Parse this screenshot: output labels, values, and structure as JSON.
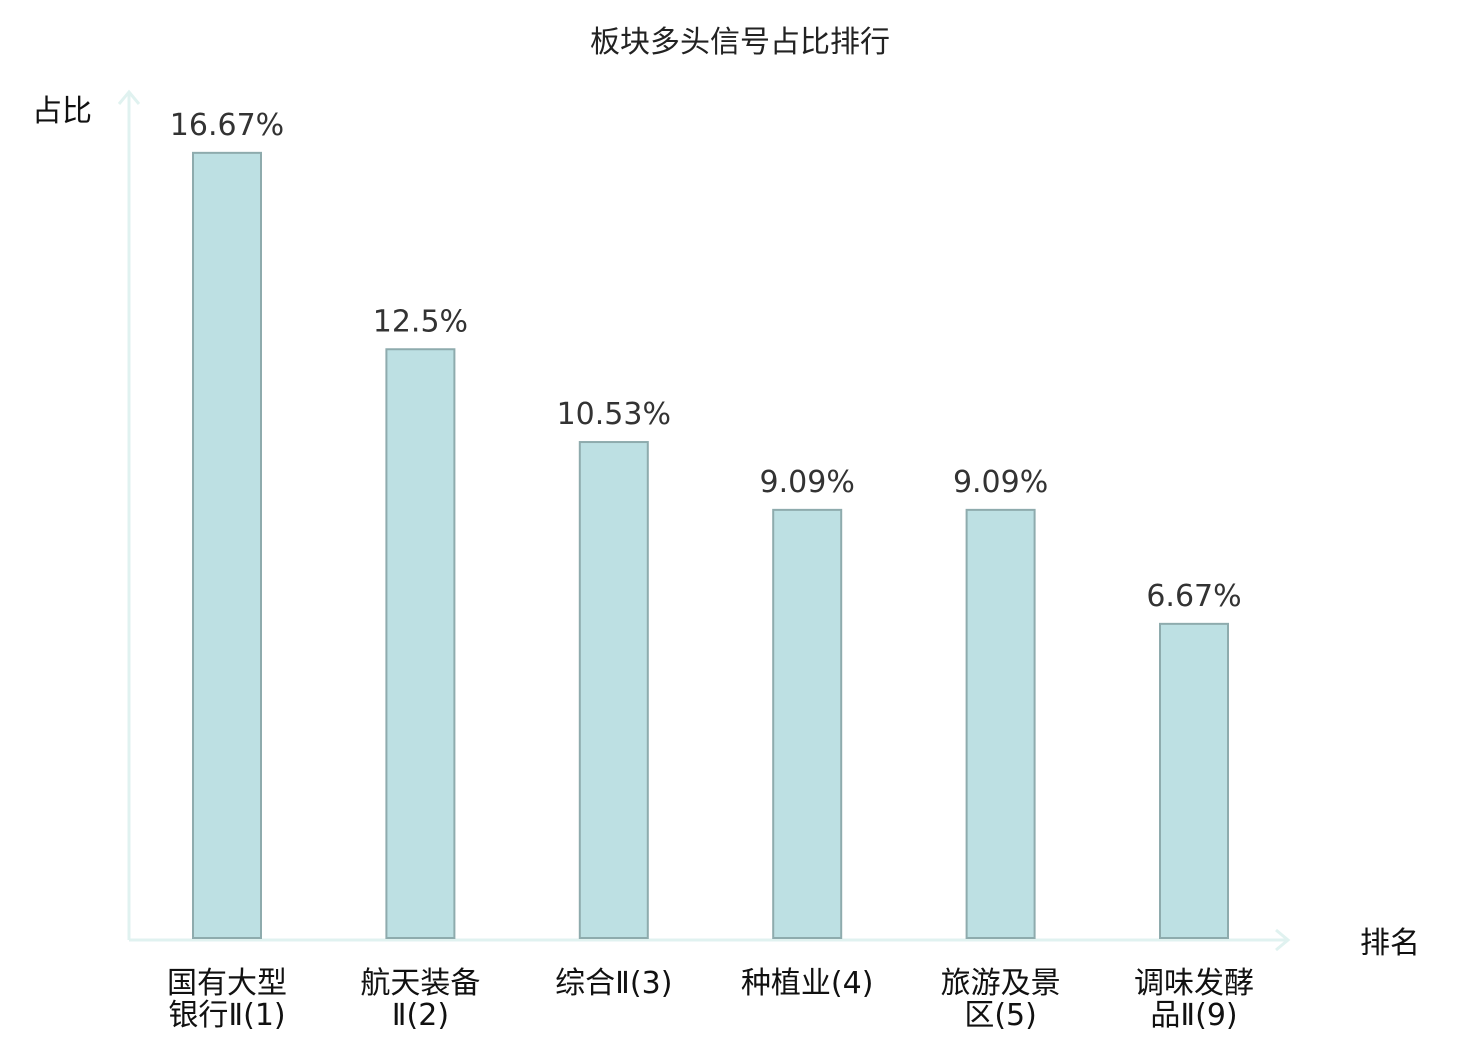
{
  "chart_data": {
    "type": "bar",
    "title": "板块多头信号占比排行",
    "ylabel": "占比",
    "xlabel": "排名",
    "ylim": [
      0,
      17
    ],
    "grid": false,
    "categories": [
      [
        "国有大型",
        "银行Ⅱ(1)"
      ],
      [
        "航天装备",
        "Ⅱ(2)"
      ],
      [
        "综合Ⅱ(3)"
      ],
      [
        "种植业(4)"
      ],
      [
        "旅游及景",
        "区(5)"
      ],
      [
        "调味发酵",
        "品Ⅱ(9)"
      ]
    ],
    "values": [
      16.67,
      12.5,
      10.53,
      9.09,
      9.09,
      6.67
    ],
    "value_labels": [
      "16.67%",
      "12.5%",
      "10.53%",
      "9.09%",
      "9.09%",
      "6.67%"
    ],
    "highlight_index": 5,
    "colors": {
      "bar_fill": "#bde0e3",
      "bar_stroke": "#8eabad",
      "axis": "#e0f2f0",
      "highlight_text": "#e01010",
      "text": "#111111"
    }
  }
}
